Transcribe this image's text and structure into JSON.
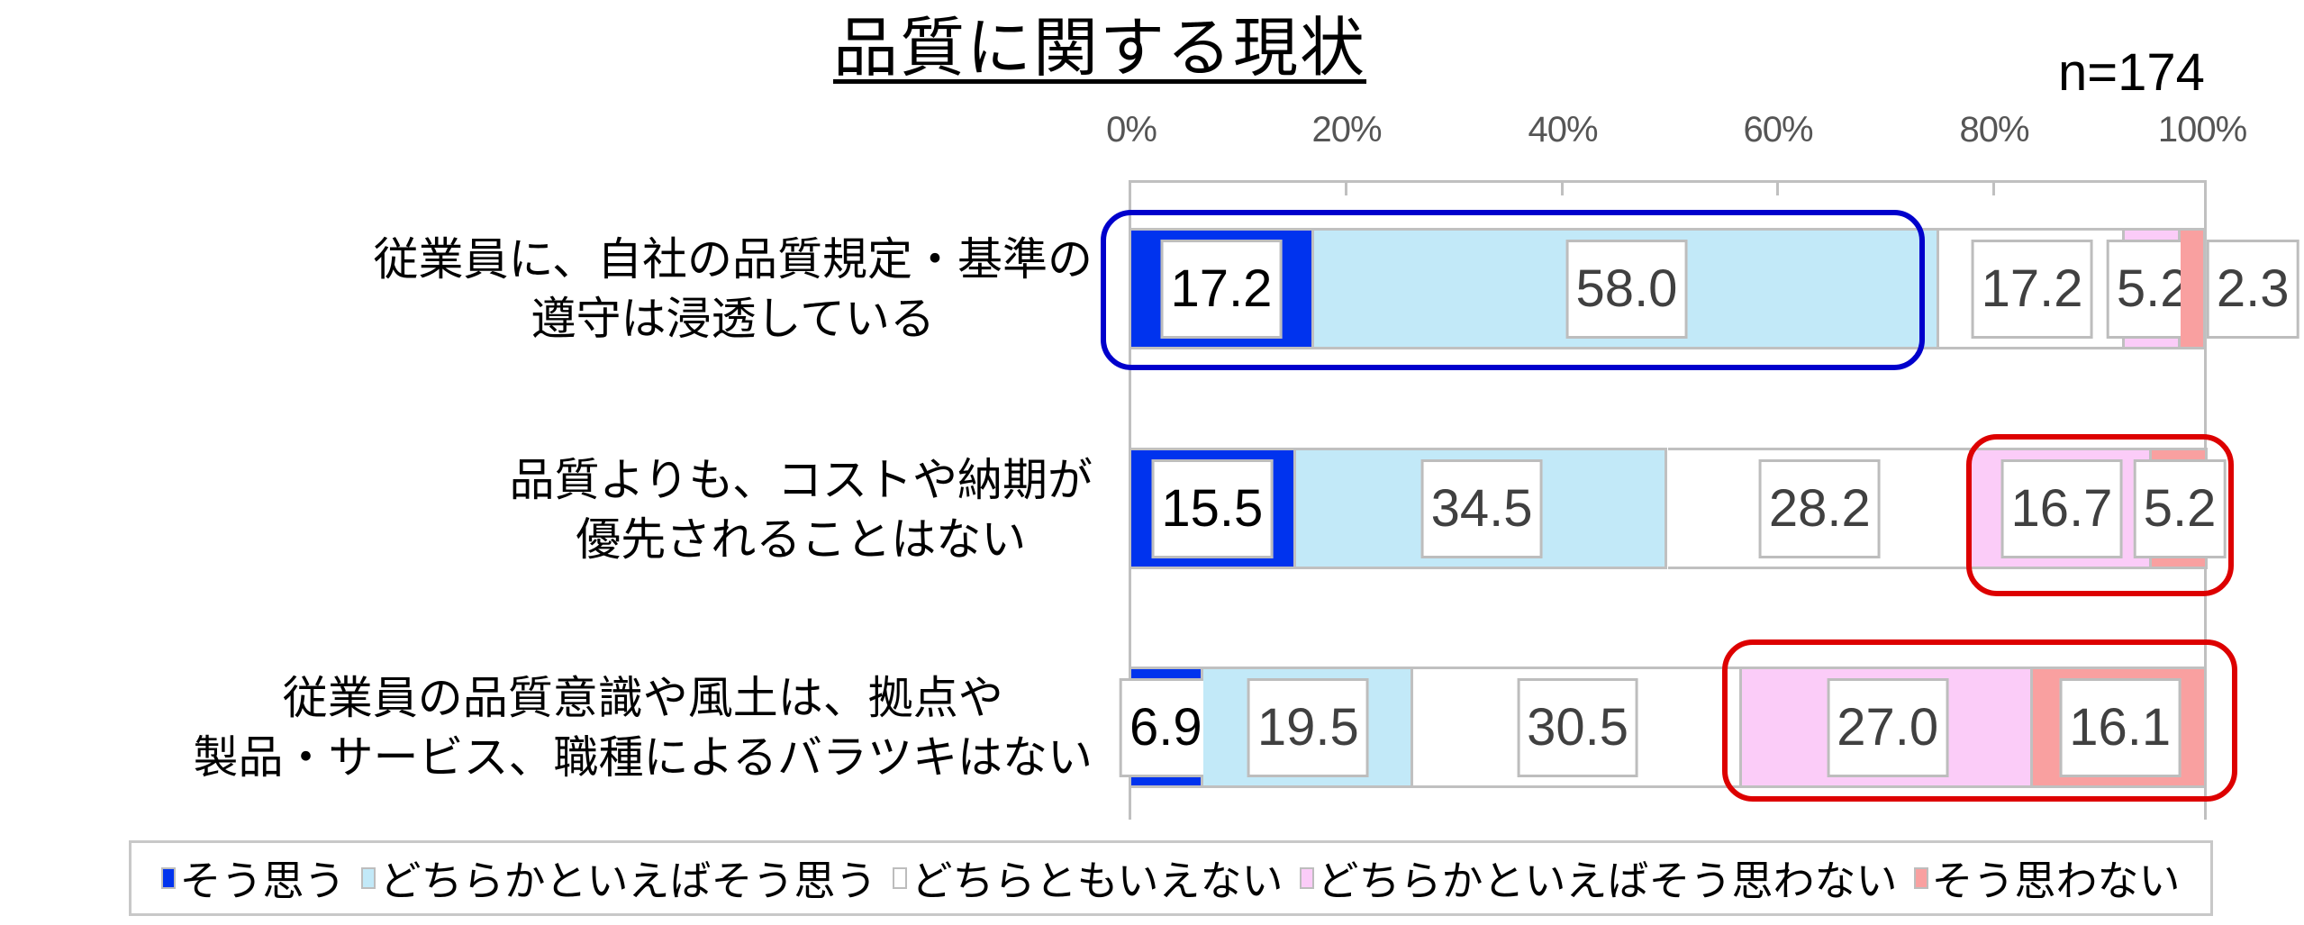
{
  "chart_data": {
    "type": "bar",
    "orientation": "horizontal",
    "stacked": true,
    "percent_stacked": true,
    "title": "品質に関する現状",
    "sample_size_label": "n=174",
    "xlabel": "",
    "ylabel": "",
    "xlim": [
      0,
      100
    ],
    "x_ticks": [
      "0%",
      "20%",
      "40%",
      "60%",
      "80%",
      "100%"
    ],
    "grid": false,
    "legend_position": "bottom",
    "categories": [
      "従業員に、自社の品質規定・基準の遵守は浸透している",
      "品質よりも、コストや納期が優先されることはない",
      "従業員の品質意識や風土は、拠点や製品・サービス、職種によるバラツキはない"
    ],
    "category_lines": [
      [
        "従業員に、自社の品質規定・基準の",
        "遵守は浸透している"
      ],
      [
        "品質よりも、コストや納期が",
        "優先されることはない"
      ],
      [
        "従業員の品質意識や風土は、拠点や",
        "製品・サービス、職種によるバラツキはない"
      ]
    ],
    "series": [
      {
        "name": "そう思う",
        "color": "#0033ee",
        "values": [
          17.2,
          15.5,
          6.9
        ]
      },
      {
        "name": "どちらかといえばそう思う",
        "color": "#c2e9f8",
        "values": [
          58.0,
          34.5,
          19.5
        ]
      },
      {
        "name": "どちらともいえない",
        "color": "#ffffff",
        "values": [
          17.2,
          28.2,
          30.5
        ]
      },
      {
        "name": "どちらかといえばそう思わない",
        "color": "#fbccf8",
        "values": [
          5.2,
          16.7,
          27.0
        ]
      },
      {
        "name": "そう思わない",
        "color": "#f9a0a0",
        "values": [
          2.3,
          5.2,
          16.1
        ]
      }
    ],
    "value_labels": [
      [
        "17.2",
        "58.0",
        "17.2",
        "5.2",
        "2.3"
      ],
      [
        "15.5",
        "34.5",
        "28.2",
        "16.7",
        "5.2"
      ],
      [
        "6.9",
        "19.5",
        "30.5",
        "27.0",
        "16.1"
      ]
    ],
    "annotations": [
      {
        "type": "rounded-rect",
        "color": "#0000cc",
        "target": "row 1, series 1-2"
      },
      {
        "type": "rounded-rect",
        "color": "#dd0000",
        "target": "row 2, series 4-5"
      },
      {
        "type": "rounded-rect",
        "color": "#dd0000",
        "target": "row 3, series 4-5"
      }
    ]
  }
}
